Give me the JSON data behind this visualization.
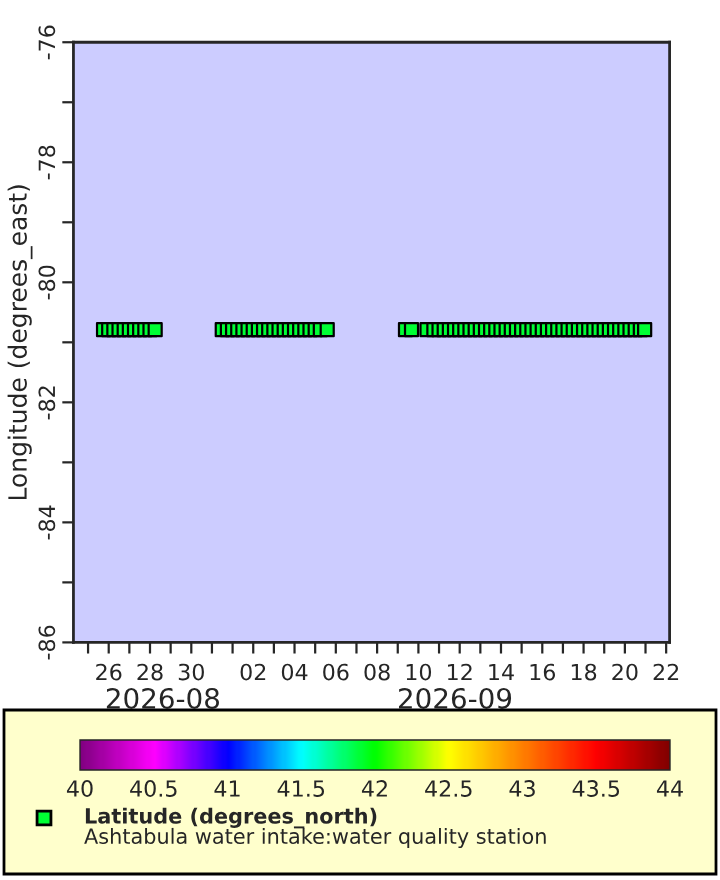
{
  "chart_data": {
    "type": "scatter",
    "ylabel": "Longitude (degrees_east)",
    "marker": "square",
    "grid": false,
    "legend": "bottom",
    "xlim": [
      "2026-08-24T07:00",
      "2026-09-22T04:00"
    ],
    "xticks": [
      {
        "value": "2026-08-25",
        "label": null
      },
      {
        "value": "2026-08-26",
        "label": "26"
      },
      {
        "value": "2026-08-27",
        "label": null
      },
      {
        "value": "2026-08-28",
        "label": "28"
      },
      {
        "value": "2026-08-29",
        "label": null
      },
      {
        "value": "2026-08-30",
        "label": "30"
      },
      {
        "value": "2026-08-31",
        "label": null
      },
      {
        "value": "2026-09-01",
        "label": null
      },
      {
        "value": "2026-09-02",
        "label": "02"
      },
      {
        "value": "2026-09-03",
        "label": null
      },
      {
        "value": "2026-09-04",
        "label": "04"
      },
      {
        "value": "2026-09-05",
        "label": null
      },
      {
        "value": "2026-09-06",
        "label": "06"
      },
      {
        "value": "2026-09-07",
        "label": null
      },
      {
        "value": "2026-09-08",
        "label": "08"
      },
      {
        "value": "2026-09-09",
        "label": null
      },
      {
        "value": "2026-09-10",
        "label": "10"
      },
      {
        "value": "2026-09-11",
        "label": null
      },
      {
        "value": "2026-09-12",
        "label": "12"
      },
      {
        "value": "2026-09-13",
        "label": null
      },
      {
        "value": "2026-09-14",
        "label": "14"
      },
      {
        "value": "2026-09-15",
        "label": null
      },
      {
        "value": "2026-09-16",
        "label": "16"
      },
      {
        "value": "2026-09-17",
        "label": null
      },
      {
        "value": "2026-09-18",
        "label": "18"
      },
      {
        "value": "2026-09-19",
        "label": null
      },
      {
        "value": "2026-09-20",
        "label": "20"
      },
      {
        "value": "2026-09-21",
        "label": null
      },
      {
        "value": "2026-09-22",
        "label": "22"
      }
    ],
    "ylim": [
      -86,
      -76
    ],
    "yticks": [
      -86,
      {
        "value": -85,
        "label": null
      },
      -84,
      {
        "value": -83,
        "label": null
      },
      -82,
      {
        "value": -81,
        "label": null
      },
      -80,
      {
        "value": -79,
        "label": null
      },
      -78,
      {
        "value": -77,
        "label": null
      },
      -76
    ],
    "clim": [
      40,
      44
    ],
    "cticks": [
      40,
      40.5,
      41,
      41.5,
      42,
      42.5,
      43,
      43.5,
      44
    ],
    "annotations": [
      "2026-08",
      "2026-09",
      "Ashtabula water intake:water quality station"
    ],
    "series": [
      {
        "name": "Latitude (degrees_north)",
        "x": [
          "2026-08-25T18:00",
          "2026-08-26T00:00",
          "2026-08-26T06:00",
          "2026-08-26T12:00",
          "2026-08-26T18:00",
          "2026-08-27T00:00",
          "2026-08-27T06:00",
          "2026-08-27T12:00",
          "2026-08-27T18:00",
          "2026-08-28T00:00",
          "2026-08-28T06:00",
          "2026-08-31T12:00",
          "2026-08-31T18:00",
          "2026-09-01T00:00",
          "2026-09-01T06:00",
          "2026-09-01T12:00",
          "2026-09-01T18:00",
          "2026-09-02T00:00",
          "2026-09-02T06:00",
          "2026-09-02T12:00",
          "2026-09-02T18:00",
          "2026-09-03T00:00",
          "2026-09-03T06:00",
          "2026-09-03T12:00",
          "2026-09-03T18:00",
          "2026-09-04T00:00",
          "2026-09-04T06:00",
          "2026-09-04T12:00",
          "2026-09-04T18:00",
          "2026-09-05T00:00",
          "2026-09-05T06:00",
          "2026-09-05T14:00",
          "2026-09-09T09:00",
          "2026-09-09T16:00",
          "2026-09-10T10:00",
          "2026-09-10T18:00",
          "2026-09-11T00:00",
          "2026-09-11T06:00",
          "2026-09-11T12:00",
          "2026-09-11T18:00",
          "2026-09-12T00:00",
          "2026-09-12T06:00",
          "2026-09-12T12:00",
          "2026-09-12T18:00",
          "2026-09-13T00:00",
          "2026-09-13T06:00",
          "2026-09-13T12:00",
          "2026-09-13T18:00",
          "2026-09-14T00:00",
          "2026-09-14T06:00",
          "2026-09-14T12:00",
          "2026-09-14T18:00",
          "2026-09-15T00:00",
          "2026-09-15T06:00",
          "2026-09-15T12:00",
          "2026-09-15T18:00",
          "2026-09-16T00:00",
          "2026-09-16T06:00",
          "2026-09-16T12:00",
          "2026-09-16T18:00",
          "2026-09-17T00:00",
          "2026-09-17T06:00",
          "2026-09-17T12:00",
          "2026-09-17T18:00",
          "2026-09-18T00:00",
          "2026-09-18T06:00",
          "2026-09-18T12:00",
          "2026-09-18T18:00",
          "2026-09-19T00:00",
          "2026-09-19T06:00",
          "2026-09-19T12:00",
          "2026-09-19T18:00",
          "2026-09-20T00:00",
          "2026-09-20T06:00",
          "2026-09-20T12:00",
          "2026-09-20T18:00",
          "2026-09-20T23:00"
        ],
        "values": [
          -80.79,
          -80.79,
          -80.79,
          -80.79,
          -80.79,
          -80.79,
          -80.79,
          -80.79,
          -80.79,
          -80.79,
          -80.79,
          -80.79,
          -80.79,
          -80.79,
          -80.79,
          -80.79,
          -80.79,
          -80.79,
          -80.79,
          -80.79,
          -80.79,
          -80.79,
          -80.79,
          -80.79,
          -80.79,
          -80.79,
          -80.79,
          -80.79,
          -80.79,
          -80.79,
          -80.79,
          -80.79,
          -80.79,
          -80.79,
          -80.79,
          -80.79,
          -80.79,
          -80.79,
          -80.79,
          -80.79,
          -80.79,
          -80.79,
          -80.79,
          -80.79,
          -80.79,
          -80.79,
          -80.79,
          -80.79,
          -80.79,
          -80.79,
          -80.79,
          -80.79,
          -80.79,
          -80.79,
          -80.79,
          -80.79,
          -80.79,
          -80.79,
          -80.79,
          -80.79,
          -80.79,
          -80.79,
          -80.79,
          -80.79,
          -80.79,
          -80.79,
          -80.79,
          -80.79,
          -80.79,
          -80.79,
          -80.79,
          -80.79,
          -80.79,
          -80.79,
          -80.79,
          -80.79,
          -80.79
        ],
        "cvalues": [
          41.9,
          41.9,
          41.9,
          41.9,
          41.9,
          41.9,
          41.9,
          41.9,
          41.9,
          41.9,
          41.9,
          41.9,
          41.9,
          41.9,
          41.9,
          41.9,
          41.9,
          41.9,
          41.9,
          41.9,
          41.9,
          41.9,
          41.9,
          41.9,
          41.9,
          41.9,
          41.9,
          41.9,
          41.9,
          41.9,
          41.9,
          41.9,
          41.9,
          41.9,
          41.9,
          41.9,
          41.9,
          41.9,
          41.9,
          41.9,
          41.9,
          41.9,
          41.9,
          41.9,
          41.9,
          41.9,
          41.9,
          41.9,
          41.9,
          41.9,
          41.9,
          41.9,
          41.9,
          41.9,
          41.9,
          41.9,
          41.9,
          41.9,
          41.9,
          41.9,
          41.9,
          41.9,
          41.9,
          41.9,
          41.9,
          41.9,
          41.9,
          41.9,
          41.9,
          41.9,
          41.9,
          41.9,
          41.9,
          41.9,
          41.9,
          41.9,
          41.9
        ]
      }
    ]
  }
}
